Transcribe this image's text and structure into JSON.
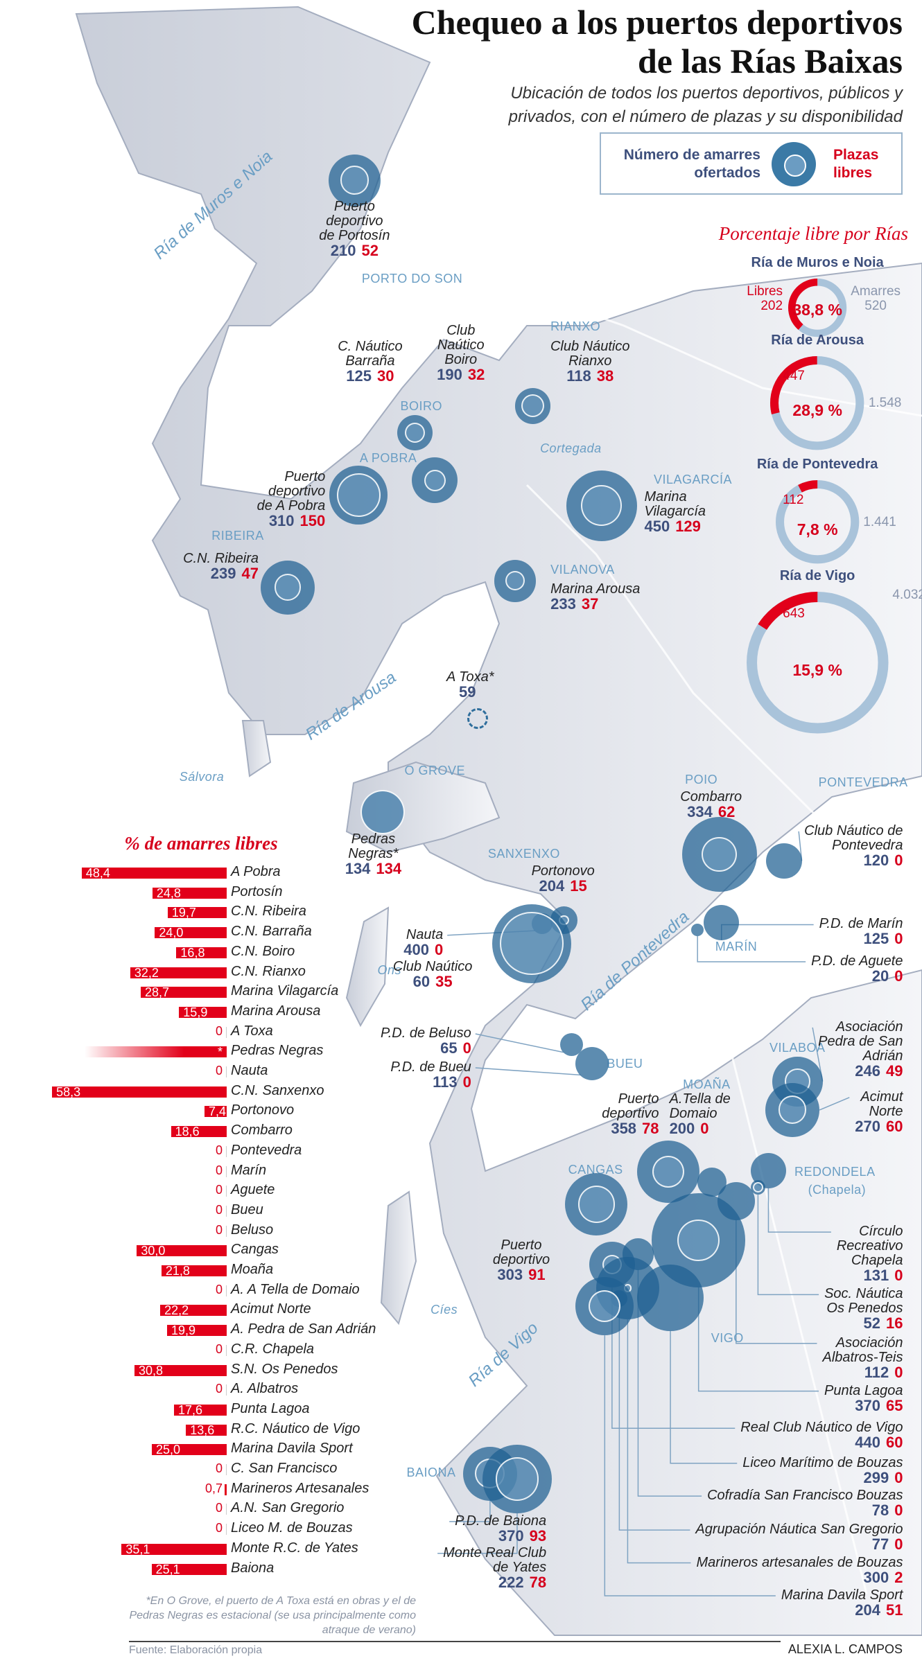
{
  "header": {
    "title_line1": "Chequeo a los puertos deportivos",
    "title_line2": "de las Rías Baixas",
    "subtitle": "Ubicación de todos los puertos deportivos, públicos y privados, con el número de plazas y su disponibilidad"
  },
  "legend": {
    "total_label": "Número de amarres ofertados",
    "free_label": "Plazas libres"
  },
  "colors": {
    "accent_red": "#d6001c",
    "navy": "#3d4f7c",
    "circle_blue": "#2f6e9c",
    "ring_light": "#a9c3da"
  },
  "map": {
    "places": [
      "PORTO DO SON",
      "RIANXO",
      "BOIRO",
      "A POBRA",
      "Cortegada",
      "VILAGARCÍA",
      "RIBEIRA",
      "VILANOVA",
      "O GROVE",
      "SANXENXO",
      "POIO",
      "PONTEVEDRA",
      "MARÍN",
      "BUEU",
      "MOAÑA",
      "VILABOA",
      "REDONDELA",
      "(Chapela)",
      "CANGAS",
      "VIGO",
      "BAIONA",
      "Sálvora",
      "Ons",
      "Cíes"
    ],
    "rias": [
      "Ría de Muros e Noia",
      "Ría de Arousa",
      "Ría de Pontevedra",
      "Ría de Vigo"
    ],
    "ports": [
      {
        "name": "Puerto\ndeportivo\nde Portosín",
        "total": "210",
        "free": "52"
      },
      {
        "name": "C. Náutico\nBarraña",
        "total": "125",
        "free": "30"
      },
      {
        "name": "Club\nNaútico\nBoiro",
        "total": "190",
        "free": "32"
      },
      {
        "name": "Club Náutico\nRianxo",
        "total": "118",
        "free": "38"
      },
      {
        "name": "Puerto\ndeportivo\nde A Pobra",
        "total": "310",
        "free": "150"
      },
      {
        "name": "Marina\nVilagarcía",
        "total": "450",
        "free": "129"
      },
      {
        "name": "C.N. Ribeira",
        "total": "239",
        "free": "47"
      },
      {
        "name": "Marina Arousa",
        "total": "233",
        "free": "37"
      },
      {
        "name": "A Toxa*",
        "total": "59",
        "free": ""
      },
      {
        "name": "Pedras\nNegras*",
        "total": "134",
        "free": "134"
      },
      {
        "name": "Combarro",
        "total": "334",
        "free": "62"
      },
      {
        "name": "Portonovo",
        "total": "204",
        "free": "15"
      },
      {
        "name": "Nauta",
        "total": "400",
        "free": "0"
      },
      {
        "name": "Club Naútico",
        "total": "60",
        "free": "35"
      },
      {
        "name": "Club Náutico de\nPontevedra",
        "total": "120",
        "free": "0"
      },
      {
        "name": "P.D. de Marín",
        "total": "125",
        "free": "0"
      },
      {
        "name": "P.D. de Aguete",
        "total": "20",
        "free": "0"
      },
      {
        "name": "P.D. de Beluso",
        "total": "65",
        "free": "0"
      },
      {
        "name": "P.D. de Bueu",
        "total": "113",
        "free": "0"
      },
      {
        "name": "Asociación\nPedra de San\nAdrián",
        "total": "246",
        "free": "49"
      },
      {
        "name": "Acimut\nNorte",
        "total": "270",
        "free": "60"
      },
      {
        "name": "Puerto\ndeportivo",
        "total": "358",
        "free": "78"
      },
      {
        "name": "A.Tella de\nDomaio",
        "total": "200",
        "free": "0"
      },
      {
        "name": "Puerto\ndeportivo",
        "total": "303",
        "free": "91"
      },
      {
        "name": "Círculo\nRecreativo\nChapela",
        "total": "131",
        "free": "0"
      },
      {
        "name": "Soc. Náutica\nOs Penedos",
        "total": "52",
        "free": "16"
      },
      {
        "name": "Asociación\nAlbatros-Teis",
        "total": "112",
        "free": "0"
      },
      {
        "name": "Punta Lagoa",
        "total": "370",
        "free": "65"
      },
      {
        "name": "Real Club Náutico de Vigo",
        "total": "440",
        "free": "60"
      },
      {
        "name": "Liceo Marítimo de Bouzas",
        "total": "299",
        "free": "0"
      },
      {
        "name": "Cofradía San Francisco Bouzas",
        "total": "78",
        "free": "0"
      },
      {
        "name": "Agrupación Náutica San Gregorio",
        "total": "77",
        "free": "0"
      },
      {
        "name": "Marineros artesanales de Bouzas",
        "total": "300",
        "free": "2"
      },
      {
        "name": "Marina Davila Sport",
        "total": "204",
        "free": "51"
      },
      {
        "name": "P.D. de Baiona",
        "total": "370",
        "free": "93"
      },
      {
        "name": "Monte Real Club\nde Yates",
        "total": "222",
        "free": "78"
      }
    ]
  },
  "chart_data": [
    {
      "type": "bar",
      "orientation": "horizontal",
      "title": "% de amarres libres",
      "categories": [
        "A Pobra",
        "Portosín",
        "C.N. Ribeira",
        "C.N. Barraña",
        "C.N. Boiro",
        "C.N. Rianxo",
        "Marina Vilagarcía",
        "Marina Arousa",
        "A Toxa",
        "Pedras Negras",
        "Nauta",
        "C.N. Sanxenxo",
        "Portonovo",
        "Combarro",
        "Pontevedra",
        "Marín",
        "Aguete",
        "Bueu",
        "Beluso",
        "Cangas",
        "Moaña",
        "A. A Tella de Domaio",
        "Acimut Norte",
        "A. Pedra de San Adrián",
        "C.R. Chapela",
        "S.N. Os Penedos",
        "A. Albatros",
        "Punta Lagoa",
        "R.C. Náutico de Vigo",
        "Marina Davila Sport",
        "C. San Francisco",
        "Marineros Artesanales",
        "A.N. San Gregorio",
        "Liceo M. de Bouzas",
        "Monte R.C. de Yates",
        "Baiona"
      ],
      "values": [
        48.4,
        24.8,
        19.7,
        24.0,
        16.8,
        32.2,
        28.7,
        15.9,
        0,
        null,
        0,
        58.3,
        7.4,
        18.6,
        0,
        0,
        0,
        0,
        0,
        30.0,
        21.8,
        0,
        22.2,
        19.9,
        0,
        30.8,
        0,
        17.6,
        13.6,
        25.0,
        0,
        0.7,
        0,
        0,
        35.1,
        25.1
      ],
      "labels": [
        "48,4",
        "24,8",
        "19,7",
        "24,0",
        "16,8",
        "32,2",
        "28,7",
        "15,9",
        "0",
        "*",
        "0",
        "58,3",
        "7,4",
        "18,6",
        "0",
        "0",
        "0",
        "0",
        "0",
        "30,0",
        "21,8",
        "0",
        "22,2",
        "19,9",
        "0",
        "30,8",
        "0",
        "17,6",
        "13,6",
        "25,0",
        "0",
        "0,7",
        "0",
        "0",
        "35,1",
        "25,1"
      ],
      "xlim": [
        0,
        60
      ]
    },
    {
      "type": "pie",
      "variant": "donut",
      "title": "Porcentaje libre por Rías",
      "series": [
        {
          "name": "Ría de Muros e Noia",
          "free": 202,
          "total": 520,
          "percent": 38.8,
          "free_label": "202",
          "total_label": "520",
          "percent_label": "38,8 %"
        },
        {
          "name": "Ría de Arousa",
          "free": 447,
          "total": 1548,
          "percent": 28.9,
          "free_label": "447",
          "total_label": "1.548",
          "percent_label": "28,9 %"
        },
        {
          "name": "Ría de Pontevedra",
          "free": 112,
          "total": 1441,
          "percent": 7.8,
          "free_label": "112",
          "total_label": "1.441",
          "percent_label": "7,8 %"
        },
        {
          "name": "Ría de Vigo",
          "free": 643,
          "total": 4032,
          "percent": 15.9,
          "free_label": "643",
          "total_label": "4.032",
          "percent_label": "15,9 %"
        }
      ],
      "legend": {
        "free": "Libres",
        "total": "Amarres"
      }
    }
  ],
  "footer": {
    "note": "*En O Grove, el puerto de A Toxa está en obras y el de Pedras Negras es estacional (se usa principalmente como atraque de verano)",
    "source": "Fuente: Elaboración propia",
    "author": "ALEXIA L. CAMPOS"
  }
}
